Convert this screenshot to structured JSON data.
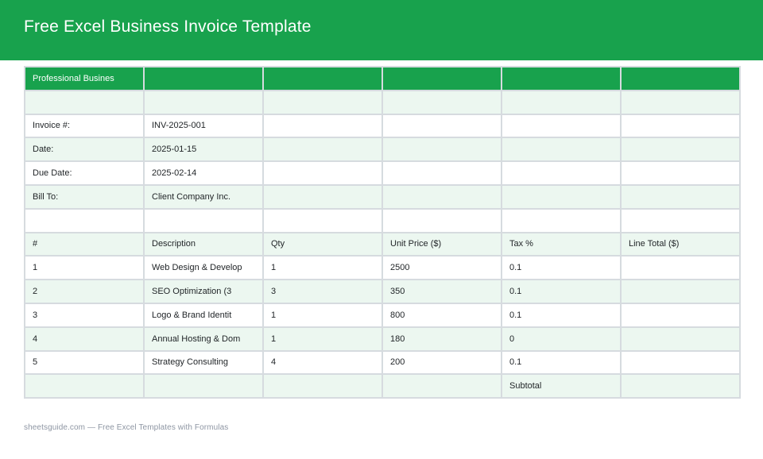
{
  "page": {
    "title": "Free Excel Business Invoice Template",
    "footer": "sheetsguide.com — Free Excel Templates with Formulas"
  },
  "colors": {
    "brand_green": "#18a24d",
    "row_mint": "#ecf7f0",
    "grid_border": "#d6dbdf",
    "footer_gray": "#8e96a3"
  },
  "invoice": {
    "sheet_header": "Professional Busines",
    "meta": [
      {
        "label": "Invoice #:",
        "value": "INV-2025-001"
      },
      {
        "label": "Date:",
        "value": "2025-01-15"
      },
      {
        "label": "Due Date:",
        "value": "2025-02-14"
      },
      {
        "label": "Bill To:",
        "value": "Client Company Inc."
      }
    ],
    "columns": [
      "#",
      "Description",
      "Qty",
      "Unit Price ($)",
      "Tax %",
      "Line Total ($)"
    ],
    "items": [
      {
        "num": "1",
        "description": "Web Design & Develop",
        "qty": "1",
        "unit_price": "2500",
        "tax": "0.1",
        "line_total": ""
      },
      {
        "num": "2",
        "description": "SEO Optimization (3",
        "qty": "3",
        "unit_price": "350",
        "tax": "0.1",
        "line_total": ""
      },
      {
        "num": "3",
        "description": "Logo & Brand Identit",
        "qty": "1",
        "unit_price": "800",
        "tax": "0.1",
        "line_total": ""
      },
      {
        "num": "4",
        "description": "Annual Hosting & Dom",
        "qty": "1",
        "unit_price": "180",
        "tax": "0",
        "line_total": ""
      },
      {
        "num": "5",
        "description": "Strategy Consulting",
        "qty": "4",
        "unit_price": "200",
        "tax": "0.1",
        "line_total": ""
      }
    ],
    "subtotal_label": "Subtotal"
  }
}
